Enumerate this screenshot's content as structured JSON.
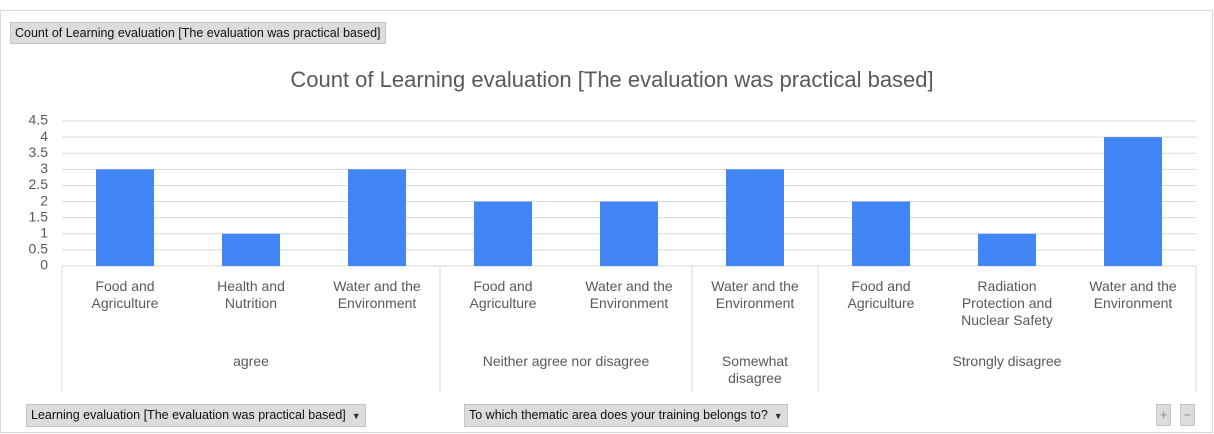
{
  "value_field_button": "Count of Learning evaluation [The evaluation was practical based]",
  "axis_field_buttons": [
    "Learning evaluation [The evaluation was practical based]",
    "To which thematic area does your training belongs to?"
  ],
  "zoom_buttons": [
    "+",
    "−"
  ],
  "chart_data": {
    "type": "bar",
    "title": "Count of Learning evaluation [The evaluation was practical based]",
    "color": "#4285f4",
    "groups": [
      {
        "name": "agree",
        "categories": [
          "Food and Agriculture",
          "Health and Nutrition",
          "Water and the Environment"
        ],
        "values": [
          3,
          1,
          3
        ]
      },
      {
        "name": "Neither agree nor disagree",
        "categories": [
          "Food and Agriculture",
          "Water and the Environment"
        ],
        "values": [
          2,
          2
        ]
      },
      {
        "name": "Somewhat disagree",
        "categories": [
          "Water and the Environment"
        ],
        "values": [
          3
        ]
      },
      {
        "name": "Strongly disagree",
        "categories": [
          "Food and Agriculture",
          "Radiation Protection and Nuclear Safety",
          "Water and the Environment"
        ],
        "values": [
          2,
          1,
          4
        ]
      }
    ],
    "ylim": [
      0,
      4.5
    ],
    "yticks": [
      0,
      0.5,
      1,
      1.5,
      2,
      2.5,
      3,
      3.5,
      4,
      4.5
    ],
    "grid": true
  }
}
